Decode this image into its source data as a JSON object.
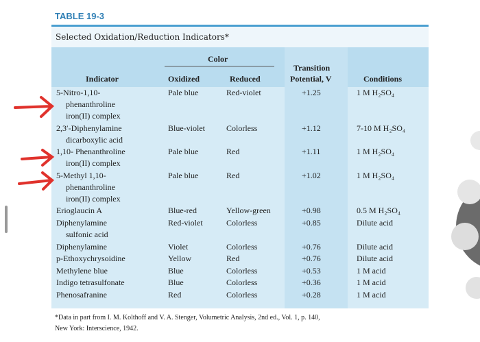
{
  "table_label": "TABLE 19-3",
  "caption": "Selected Oxidation/Reduction Indicators*",
  "header": {
    "indicator": "Indicator",
    "color": "Color",
    "oxidized": "Oxidized",
    "reduced": "Reduced",
    "potential": [
      "Transition",
      "Potential, V"
    ],
    "conditions": "Conditions"
  },
  "rows": [
    {
      "indicator": [
        "5-Nitro-1,10-",
        "phenanthroline",
        "iron(II) complex"
      ],
      "oxidized": "Pale blue",
      "reduced": "Red-violet",
      "potential": "+1.25",
      "conditions": "1 M H₂SO₄"
    },
    {
      "indicator": [
        "2,3′-Diphenylamine",
        "dicarboxylic acid"
      ],
      "oxidized": "Blue-violet",
      "reduced": "Colorless",
      "potential": "+1.12",
      "conditions": "7-10 M H₂SO₄"
    },
    {
      "indicator": [
        "1,10- Phenanthroline",
        "iron(II) complex"
      ],
      "oxidized": "Pale blue",
      "reduced": "Red",
      "potential": "+1.11",
      "conditions": "1 M H₂SO₄"
    },
    {
      "indicator": [
        "5-Methyl 1,10-",
        "phenanthroline",
        "iron(II) complex"
      ],
      "oxidized": "Pale blue",
      "reduced": "Red",
      "potential": "+1.02",
      "conditions": "1 M H₂SO₄"
    },
    {
      "indicator": [
        "Erioglaucin A"
      ],
      "oxidized": "Blue-red",
      "reduced": "Yellow-green",
      "potential": "+0.98",
      "conditions": "0.5 M H₂SO₄"
    },
    {
      "indicator": [
        "Diphenylamine",
        "sulfonic acid"
      ],
      "oxidized": "Red-violet",
      "reduced": "Colorless",
      "potential": "+0.85",
      "conditions": "Dilute acid"
    },
    {
      "indicator": [
        "Diphenylamine"
      ],
      "oxidized": "Violet",
      "reduced": "Colorless",
      "potential": "+0.76",
      "conditions": "Dilute acid"
    },
    {
      "indicator": [
        "p-Ethoxychrysoidine"
      ],
      "oxidized": "Yellow",
      "reduced": "Red",
      "potential": "+0.76",
      "conditions": "Dilute acid"
    },
    {
      "indicator": [
        "Methylene blue"
      ],
      "oxidized": "Blue",
      "reduced": "Colorless",
      "potential": "+0.53",
      "conditions": "1 M acid"
    },
    {
      "indicator": [
        "Indigo tetrasulfonate"
      ],
      "oxidized": "Blue",
      "reduced": "Colorless",
      "potential": "+0.36",
      "conditions": "1 M acid"
    },
    {
      "indicator": [
        "Phenosafranine"
      ],
      "oxidized": "Red",
      "reduced": "Colorless",
      "potential": "+0.28",
      "conditions": "1 M acid"
    }
  ],
  "footnote": [
    "*Data in part from I. M. Kolthoff and V. A. Stenger, Volumetric Analysis, 2nd ed., Vol. 1, p. 140,",
    "New York: Interscience, 1942."
  ]
}
